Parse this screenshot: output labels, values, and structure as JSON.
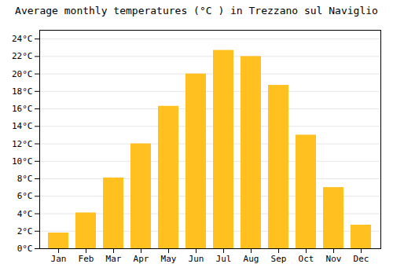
{
  "chart_data": {
    "type": "bar",
    "title": "Average monthly temperatures (°C ) in Trezzano sul Naviglio",
    "categories": [
      "Jan",
      "Feb",
      "Mar",
      "Apr",
      "May",
      "Jun",
      "Jul",
      "Aug",
      "Sep",
      "Oct",
      "Nov",
      "Dec"
    ],
    "values": [
      1.8,
      4.1,
      8.1,
      12.0,
      16.3,
      20.0,
      22.7,
      22.0,
      18.7,
      13.0,
      7.0,
      2.7
    ],
    "color": "#FFC020",
    "ylim": [
      0,
      25.0
    ],
    "yticks": [
      {
        "value": 0,
        "label": "0°C"
      },
      {
        "value": 2,
        "label": "2°C"
      },
      {
        "value": 4,
        "label": "4°C"
      },
      {
        "value": 6,
        "label": "6°C"
      },
      {
        "value": 8,
        "label": "8°C"
      },
      {
        "value": 10,
        "label": "10°C"
      },
      {
        "value": 12,
        "label": "12°C"
      },
      {
        "value": 14,
        "label": "14°C"
      },
      {
        "value": 16,
        "label": "16°C"
      },
      {
        "value": 18,
        "label": "18°C"
      },
      {
        "value": 20,
        "label": "20°C"
      },
      {
        "value": 22,
        "label": "22°C"
      },
      {
        "value": 24,
        "label": "24°C"
      }
    ],
    "grid": true
  }
}
